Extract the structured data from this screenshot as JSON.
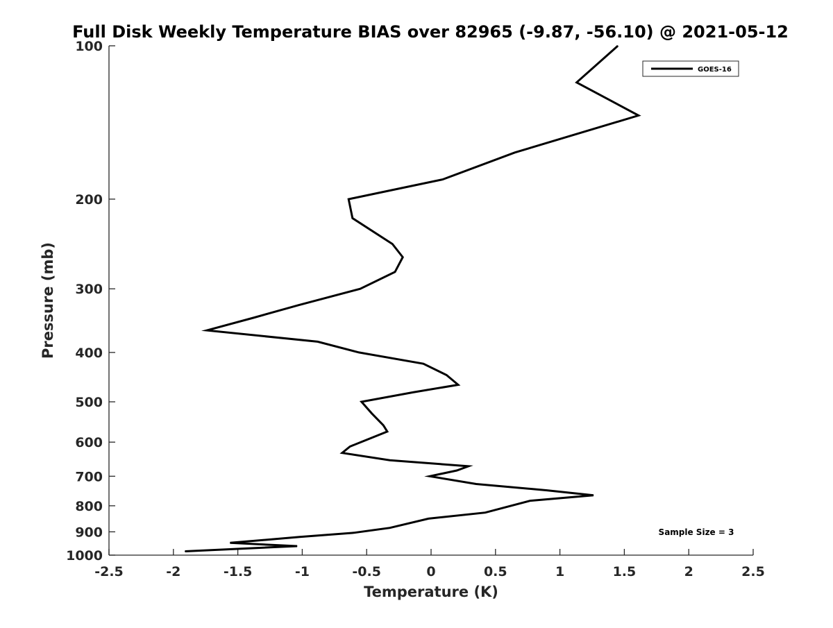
{
  "chart_data": {
    "type": "line",
    "title": "Full Disk Weekly Temperature BIAS over 82965 (-9.87, -56.10) @ 2021-05-12",
    "xlabel": "Temperature (K)",
    "ylabel": "Pressure (mb)",
    "xlim": [
      -2.5,
      2.5
    ],
    "ylim": [
      1000,
      100
    ],
    "yscale": "log",
    "y_reversed": true,
    "xticks": [
      -2.5,
      -2,
      -1.5,
      -1,
      -0.5,
      0,
      0.5,
      1,
      1.5,
      2,
      2.5
    ],
    "xtick_labels": [
      "-2.5",
      "-2",
      "-1.5",
      "-1",
      "-0.5",
      "0",
      "0.5",
      "1",
      "1.5",
      "2",
      "2.5"
    ],
    "yticks": [
      100,
      200,
      300,
      400,
      500,
      600,
      700,
      800,
      900,
      1000
    ],
    "ytick_labels": [
      "100",
      "200",
      "300",
      "400",
      "500",
      "600",
      "700",
      "800",
      "900",
      "1000"
    ],
    "grid": false,
    "legend_position": "top-right",
    "annotation": "Sample Size = 3",
    "colors": {
      "series": "#000000",
      "axes": "#262626"
    },
    "series": [
      {
        "name": "GOES-16",
        "points": [
          {
            "x": 1.45,
            "y": 100
          },
          {
            "x": 1.13,
            "y": 118
          },
          {
            "x": 1.61,
            "y": 137
          },
          {
            "x": 0.65,
            "y": 162
          },
          {
            "x": 0.09,
            "y": 183
          },
          {
            "x": -0.64,
            "y": 200
          },
          {
            "x": -0.61,
            "y": 218
          },
          {
            "x": -0.3,
            "y": 245
          },
          {
            "x": -0.22,
            "y": 260
          },
          {
            "x": -0.28,
            "y": 278
          },
          {
            "x": -0.55,
            "y": 300
          },
          {
            "x": -1.03,
            "y": 323
          },
          {
            "x": -1.38,
            "y": 342
          },
          {
            "x": -1.74,
            "y": 362
          },
          {
            "x": -0.88,
            "y": 381
          },
          {
            "x": -0.56,
            "y": 400
          },
          {
            "x": -0.06,
            "y": 421
          },
          {
            "x": 0.12,
            "y": 443
          },
          {
            "x": 0.21,
            "y": 463
          },
          {
            "x": -0.14,
            "y": 479
          },
          {
            "x": -0.54,
            "y": 500
          },
          {
            "x": -0.46,
            "y": 527
          },
          {
            "x": -0.37,
            "y": 556
          },
          {
            "x": -0.34,
            "y": 572
          },
          {
            "x": -0.63,
            "y": 612
          },
          {
            "x": -0.69,
            "y": 630
          },
          {
            "x": -0.32,
            "y": 651
          },
          {
            "x": 0.29,
            "y": 669
          },
          {
            "x": 0.2,
            "y": 682
          },
          {
            "x": -0.01,
            "y": 700
          },
          {
            "x": 0.35,
            "y": 725
          },
          {
            "x": 0.9,
            "y": 746
          },
          {
            "x": 1.26,
            "y": 763
          },
          {
            "x": 0.77,
            "y": 782
          },
          {
            "x": 0.42,
            "y": 825
          },
          {
            "x": -0.02,
            "y": 848
          },
          {
            "x": -0.32,
            "y": 884
          },
          {
            "x": -0.6,
            "y": 904
          },
          {
            "x": -1.02,
            "y": 921
          },
          {
            "x": -1.56,
            "y": 946
          },
          {
            "x": -1.04,
            "y": 960
          },
          {
            "x": -1.91,
            "y": 983
          }
        ]
      }
    ]
  }
}
